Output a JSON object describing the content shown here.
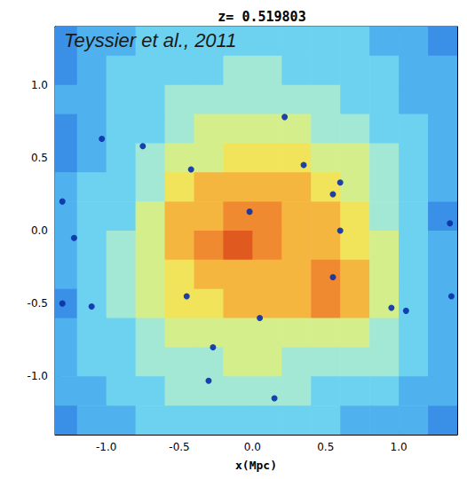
{
  "chart_data": {
    "type": "heatmap",
    "title": "z= 0.519803",
    "annotation": "Teyssier et al., 2011",
    "x_label": "x(Mpc)",
    "xlim": [
      -1.35,
      1.4
    ],
    "ylim": [
      -1.4,
      1.4
    ],
    "xticks": [
      {
        "value": -1,
        "label": "-1.0"
      },
      {
        "value": -0.5,
        "label": "-0.5"
      },
      {
        "value": 0,
        "label": "0.0"
      },
      {
        "value": 0.5,
        "label": "0.5"
      },
      {
        "value": 1,
        "label": "1.0"
      }
    ],
    "yticks": [
      {
        "value": -1,
        "label": "-1.0"
      },
      {
        "value": -0.5,
        "label": "-0.5"
      },
      {
        "value": 0,
        "label": "0.0"
      },
      {
        "value": 0.5,
        "label": "0.5"
      },
      {
        "value": 1,
        "label": "1.0"
      }
    ],
    "grid": false,
    "x": [
      -1.3,
      -1.1,
      -0.9,
      -0.7,
      -0.5,
      -0.3,
      -0.1,
      0.1,
      0.3,
      0.5,
      0.7,
      0.9,
      1.1,
      1.3
    ],
    "y": [
      1.3,
      1.1,
      0.9,
      0.7,
      0.5,
      0.3,
      0.1,
      -0.1,
      -0.3,
      -0.5,
      -0.7,
      -0.9,
      -1.1,
      -1.3
    ],
    "values": [
      [
        2,
        3,
        3,
        4,
        4,
        4,
        4,
        4,
        4,
        4,
        4,
        3,
        3,
        2
      ],
      [
        2,
        3,
        4,
        4,
        4,
        4,
        5,
        5,
        4,
        4,
        4,
        4,
        3,
        3
      ],
      [
        3,
        3,
        4,
        4,
        5,
        5,
        5,
        5,
        5,
        5,
        4,
        4,
        3,
        3
      ],
      [
        2,
        3,
        4,
        4,
        5,
        6,
        6,
        6,
        6,
        5,
        5,
        4,
        4,
        3
      ],
      [
        2,
        3,
        4,
        5,
        6,
        6,
        7,
        7,
        7,
        6,
        6,
        5,
        4,
        3
      ],
      [
        3,
        4,
        4,
        5,
        7,
        8,
        8,
        8,
        8,
        7,
        6,
        5,
        4,
        3
      ],
      [
        3,
        4,
        4,
        6,
        8,
        8,
        9,
        9,
        8,
        8,
        7,
        5,
        4,
        2
      ],
      [
        3,
        4,
        5,
        6,
        8,
        9,
        10,
        9,
        8,
        8,
        7,
        6,
        4,
        3
      ],
      [
        3,
        4,
        5,
        6,
        7,
        8,
        8,
        8,
        8,
        9,
        8,
        6,
        4,
        3
      ],
      [
        2,
        4,
        5,
        6,
        7,
        7,
        8,
        8,
        8,
        9,
        8,
        6,
        4,
        3
      ],
      [
        3,
        4,
        4,
        5,
        6,
        6,
        6,
        6,
        6,
        6,
        6,
        5,
        4,
        3
      ],
      [
        3,
        4,
        4,
        5,
        5,
        5,
        6,
        6,
        5,
        5,
        5,
        5,
        4,
        3
      ],
      [
        3,
        3,
        4,
        4,
        5,
        5,
        5,
        5,
        5,
        4,
        4,
        4,
        3,
        3
      ],
      [
        2,
        3,
        3,
        4,
        4,
        4,
        4,
        4,
        4,
        4,
        3,
        3,
        3,
        2
      ]
    ],
    "zlim": [
      0,
      10
    ],
    "colors": [
      "#0c2db0",
      "#1f55d0",
      "#3a8fe6",
      "#4fb2ee",
      "#6cd2f0",
      "#a2e8d4",
      "#d4ee8c",
      "#f2e45a",
      "#f5b640",
      "#f08a30",
      "#e05a20"
    ],
    "points": {
      "marker": "circle",
      "color": "#0a2fa8",
      "x": [
        -0.02,
        0.22,
        -1.03,
        -1.3,
        -1.22,
        -1.3,
        -1.1,
        -0.45,
        -0.27,
        -0.3,
        0.15,
        0.05,
        0.55,
        0.6,
        0.6,
        0.35,
        -0.42,
        0.95,
        1.05,
        1.36,
        1.35,
        0.55,
        -0.75
      ],
      "y": [
        0.13,
        0.78,
        0.63,
        0.2,
        -0.05,
        -0.5,
        -0.52,
        -0.45,
        -0.8,
        -1.03,
        -1.15,
        -0.6,
        -0.32,
        0.0,
        0.33,
        0.45,
        0.42,
        -0.53,
        -0.55,
        -0.45,
        0.05,
        0.25,
        0.58
      ]
    }
  }
}
